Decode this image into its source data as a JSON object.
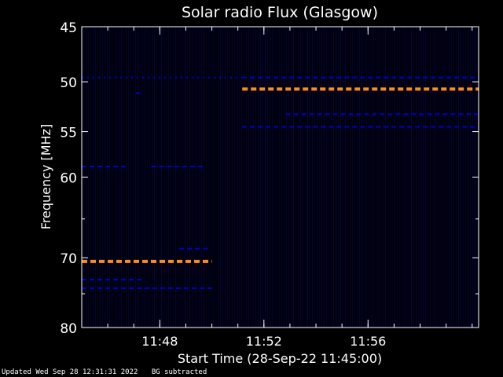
{
  "chart_data": {
    "type": "heatmap",
    "title": "Solar radio Flux (Glasgow)",
    "ylabel": "Frequency [MHz]",
    "xlabel": "Start Time (28-Sep-22 11:45:00)",
    "y_scale": "log",
    "y_inverted": true,
    "ylim": [
      45,
      80
    ],
    "xlim": [
      "11:45:00",
      "12:00:15"
    ],
    "y_ticks": [
      45,
      50,
      55,
      60,
      70,
      80
    ],
    "y_tick_labels": [
      "45",
      "50",
      "55",
      "60",
      "70",
      "80"
    ],
    "y_minor_ticks": [
      65,
      75
    ],
    "x_ticks": [
      "11:48",
      "11:52",
      "11:56"
    ],
    "x_tick_labels": [
      "11:48",
      "11:52",
      "11:56"
    ],
    "colors": {
      "background": "#000000",
      "plot_background": "#000010",
      "axis": "#ffffff",
      "weak_signal": "#0000c8",
      "strong_signal": "#ff8a20"
    },
    "bands": [
      {
        "freq": 49.6,
        "t_start": "11:45:00",
        "t_end": "11:51:10",
        "intensity": "weak",
        "pattern": "dotted"
      },
      {
        "freq": 49.6,
        "t_start": "11:51:10",
        "t_end": "12:00:15",
        "intensity": "weak",
        "pattern": "dashed"
      },
      {
        "freq": 50.7,
        "t_start": "11:51:10",
        "t_end": "12:00:15",
        "intensity": "strong",
        "pattern": "dashed"
      },
      {
        "freq": 54.5,
        "t_start": "11:51:10",
        "t_end": "12:00:15",
        "intensity": "weak",
        "pattern": "dashed"
      },
      {
        "freq": 53.2,
        "t_start": "11:52:50",
        "t_end": "12:00:15",
        "intensity": "weak",
        "pattern": "dashed"
      },
      {
        "freq": 58.8,
        "t_start": "11:45:00",
        "t_end": "11:46:40",
        "intensity": "weak",
        "pattern": "dashed"
      },
      {
        "freq": 58.8,
        "t_start": "11:47:40",
        "t_end": "11:49:40",
        "intensity": "weak",
        "pattern": "dashed"
      },
      {
        "freq": 51.1,
        "t_start": "11:47:05",
        "t_end": "11:47:15",
        "intensity": "weak",
        "pattern": "solid"
      },
      {
        "freq": 68.8,
        "t_start": "11:48:45",
        "t_end": "11:49:55",
        "intensity": "weak",
        "pattern": "dashed"
      },
      {
        "freq": 70.5,
        "t_start": "11:45:00",
        "t_end": "11:50:00",
        "intensity": "strong",
        "pattern": "dashed"
      },
      {
        "freq": 74.2,
        "t_start": "11:45:00",
        "t_end": "11:50:00",
        "intensity": "weak",
        "pattern": "dashed"
      },
      {
        "freq": 73.0,
        "t_start": "11:45:00",
        "t_end": "11:47:20",
        "intensity": "weak",
        "pattern": "dashed"
      }
    ]
  },
  "footer": {
    "updated": "Updated Wed Sep 28 12:31:31 2022",
    "note": "BG subtracted"
  }
}
